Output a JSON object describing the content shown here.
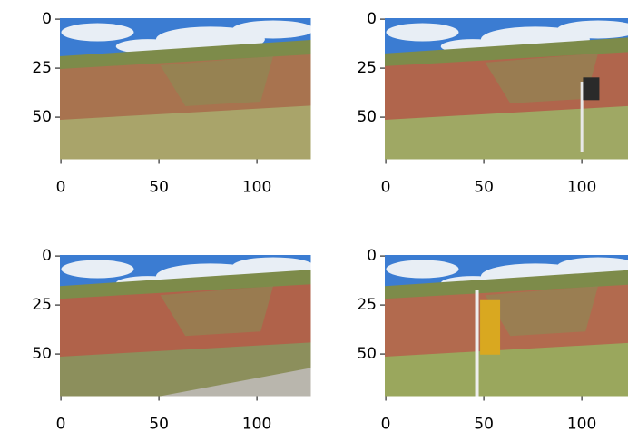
{
  "chart_data": [
    {
      "type": "image",
      "xlim": [
        -0.5,
        127.5
      ],
      "ylim": [
        71.5,
        -0.5
      ],
      "xticks": [
        0,
        50,
        100
      ],
      "yticks": [
        0,
        25,
        50
      ]
    },
    {
      "type": "image",
      "xlim": [
        -0.5,
        127.5
      ],
      "ylim": [
        71.5,
        -0.5
      ],
      "xticks": [
        0,
        50,
        100
      ],
      "yticks": [
        0,
        25,
        50
      ]
    },
    {
      "type": "image",
      "xlim": [
        -0.5,
        127.5
      ],
      "ylim": [
        71.5,
        -0.5
      ],
      "xticks": [
        0,
        50,
        100
      ],
      "yticks": [
        0,
        25,
        50
      ]
    },
    {
      "type": "image",
      "xlim": [
        -0.5,
        127.5
      ],
      "ylim": [
        71.5,
        -0.5
      ],
      "xticks": [
        0,
        50,
        100
      ],
      "yticks": [
        0,
        25,
        50
      ]
    }
  ]
}
